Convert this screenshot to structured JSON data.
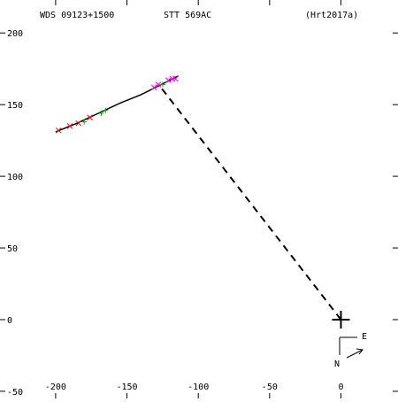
{
  "chart_data": {
    "type": "scatter",
    "header": {
      "left": "WDS 09123+1500",
      "center": "STT 569AC",
      "right": "(Hrt2017a)"
    },
    "compass": {
      "east": "E",
      "north": "N"
    },
    "xlim": [
      -239,
      40
    ],
    "ylim": [
      -55,
      223
    ],
    "xticks": [
      -200,
      -150,
      -100,
      -50,
      0
    ],
    "yticks": [
      -50,
      0,
      50,
      100,
      150,
      200
    ],
    "series": [
      {
        "color": "#000000",
        "style": "line",
        "x": [
          -200,
          -185,
          -170,
          -155,
          -140,
          -128,
          -114
        ],
        "y": [
          131,
          137,
          144,
          151,
          157,
          163,
          170
        ]
      },
      {
        "color": "#000000",
        "style": "dashed",
        "x": [
          0,
          -127
        ],
        "y": [
          0,
          163
        ]
      },
      {
        "color": "#ff0000",
        "style": "x",
        "x": [
          -198,
          -190,
          -184,
          -176
        ],
        "y": [
          132,
          135,
          137,
          141
        ]
      },
      {
        "color": "#00aa00",
        "style": "plus",
        "x": [
          -180,
          -168,
          -165,
          -125
        ],
        "y": [
          138,
          144,
          146,
          164
        ]
      },
      {
        "color": "#ff00ff",
        "style": "x",
        "x": [
          -131,
          -128,
          -121,
          -118,
          -116
        ],
        "y": [
          162,
          164,
          167,
          168,
          168
        ]
      },
      {
        "color": "#000000",
        "style": "bigplus",
        "x": [
          0
        ],
        "y": [
          0
        ]
      }
    ]
  }
}
